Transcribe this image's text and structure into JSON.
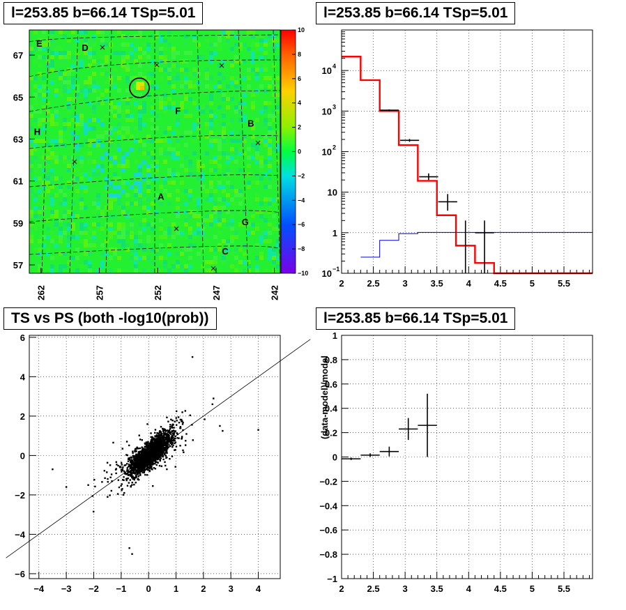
{
  "panels": {
    "skymap": {
      "title": "l=253.85 b=66.14 TSp=5.01",
      "colorbar_ticks": [
        "10",
        "8",
        "6",
        "4",
        "2",
        "0",
        "−2",
        "−4",
        "−6",
        "−8",
        "−10"
      ],
      "y_ticks": [
        "67",
        "65",
        "63",
        "61",
        "59",
        "57"
      ],
      "x_ticks": [
        "262",
        "257",
        "252",
        "247",
        "242"
      ],
      "source_labels": [
        "E",
        "D",
        "F",
        "B",
        "H",
        "A",
        "G",
        "C"
      ]
    },
    "spectrum": {
      "title": "l=253.85 b=66.14 TSp=5.01"
    },
    "tsps": {
      "title": "TS vs PS (both -log10(prob))"
    },
    "residual": {
      "title": "l=253.85 b=66.14 TSp=5.01",
      "ylabel": "(data-model)/model"
    }
  },
  "chart_data": [
    {
      "type": "heatmap",
      "title": "l=253.85 b=66.14 TSp=5.01",
      "xlim": [
        263,
        241.5
      ],
      "ylim": [
        56.6,
        68.2
      ],
      "x_ticks": [
        262,
        257,
        252,
        247,
        242
      ],
      "y_ticks": [
        67,
        65,
        63,
        61,
        59,
        57
      ],
      "zlim": [
        -10,
        10
      ],
      "colorbar_ticks": [
        10,
        8,
        6,
        4,
        2,
        0,
        -2,
        -4,
        -6,
        -8,
        -10
      ],
      "sources": [
        {
          "label": "E",
          "l": 262.4,
          "b": 67.4
        },
        {
          "label": "D",
          "l": 258.5,
          "b": 67.2
        },
        {
          "label": "F",
          "l": 250.5,
          "b": 64.2
        },
        {
          "label": "B",
          "l": 244.3,
          "b": 63.6
        },
        {
          "label": "H",
          "l": 262.6,
          "b": 63.2
        },
        {
          "label": "A",
          "l": 252.0,
          "b": 60.1
        },
        {
          "label": "G",
          "l": 244.8,
          "b": 58.9
        },
        {
          "label": "C",
          "l": 246.5,
          "b": 57.5
        }
      ]
    },
    {
      "type": "line",
      "title": "l=253.85 b=66.14 TSp=5.01",
      "xlim": [
        2,
        5.95
      ],
      "ylim": [
        0.1,
        100000
      ],
      "log_y": true,
      "x_ticks": [
        2,
        2.5,
        3,
        3.5,
        4,
        4.5,
        5,
        5.5
      ],
      "grid": true,
      "series": [
        {
          "style": "red-step",
          "bin_edges": [
            2,
            2.3,
            2.6,
            2.9,
            3.2,
            3.5,
            3.8,
            4.1,
            4.4,
            5.95
          ],
          "values": [
            22000,
            5800,
            1000,
            145,
            19,
            2.7,
            0.48,
            0.18,
            0.1
          ]
        },
        {
          "style": "blue-step",
          "bin_edges": [
            2.3,
            2.6,
            2.9,
            3.2,
            5.95
          ],
          "values": [
            0.25,
            0.65,
            0.95,
            1.02
          ]
        },
        {
          "style": "black-errorbars",
          "points": [
            {
              "x": 2.75,
              "y": 1050,
              "lo": 1000,
              "hi": 1100,
              "xerr": 0.15
            },
            {
              "x": 3.07,
              "y": 190,
              "lo": 175,
              "hi": 205,
              "xerr": 0.15
            },
            {
              "x": 3.37,
              "y": 24,
              "lo": 20,
              "hi": 29,
              "xerr": 0.15
            },
            {
              "x": 3.67,
              "y": 5.8,
              "lo": 3.5,
              "hi": 9,
              "xerr": 0.15
            },
            {
              "x": 3.95,
              "y": 0.1,
              "lo": 0.1,
              "hi": 2.0,
              "xerr": 0
            },
            {
              "x": 4.25,
              "y": 1.0,
              "lo": 0.1,
              "hi": 2.0,
              "xerr": 0.15
            }
          ]
        }
      ]
    },
    {
      "type": "scatter",
      "title": "TS vs PS (both -log10(prob))",
      "xlim": [
        -4.35,
        4.8
      ],
      "ylim": [
        -6.25,
        6.1
      ],
      "x_ticks": [
        -4,
        -3,
        -2,
        -1,
        0,
        1,
        2,
        3,
        4
      ],
      "y_ticks": [
        -6,
        -4,
        -2,
        0,
        2,
        4,
        6
      ],
      "grid": true,
      "reference_line": {
        "slope": 1,
        "intercept": 0
      },
      "point_count_approx": 2500
    },
    {
      "type": "scatter",
      "title": "l=253.85 b=66.14 TSp=5.01",
      "ylabel": "(data-model)/model",
      "xlim": [
        2,
        5.95
      ],
      "ylim": [
        -1,
        1
      ],
      "x_ticks": [
        2,
        2.5,
        3,
        3.5,
        4,
        4.5,
        5,
        5.5
      ],
      "y_ticks": [
        1,
        0.8,
        0.6,
        0.4,
        0.2,
        0,
        -0.2,
        -0.4,
        -0.6,
        -0.8,
        -1
      ],
      "grid": true,
      "points": [
        {
          "x": 2.15,
          "y": -0.015,
          "xerr": 0.15,
          "yerr": 0.01
        },
        {
          "x": 2.45,
          "y": 0.015,
          "xerr": 0.15,
          "yerr": 0.015
        },
        {
          "x": 2.75,
          "y": 0.045,
          "xerr": 0.15,
          "yerr": 0.04
        },
        {
          "x": 3.05,
          "y": 0.23,
          "xerr": 0.15,
          "yerr": 0.09
        },
        {
          "x": 3.35,
          "y": 0.26,
          "xerr": 0.15,
          "yerr": 0.26
        }
      ]
    }
  ]
}
